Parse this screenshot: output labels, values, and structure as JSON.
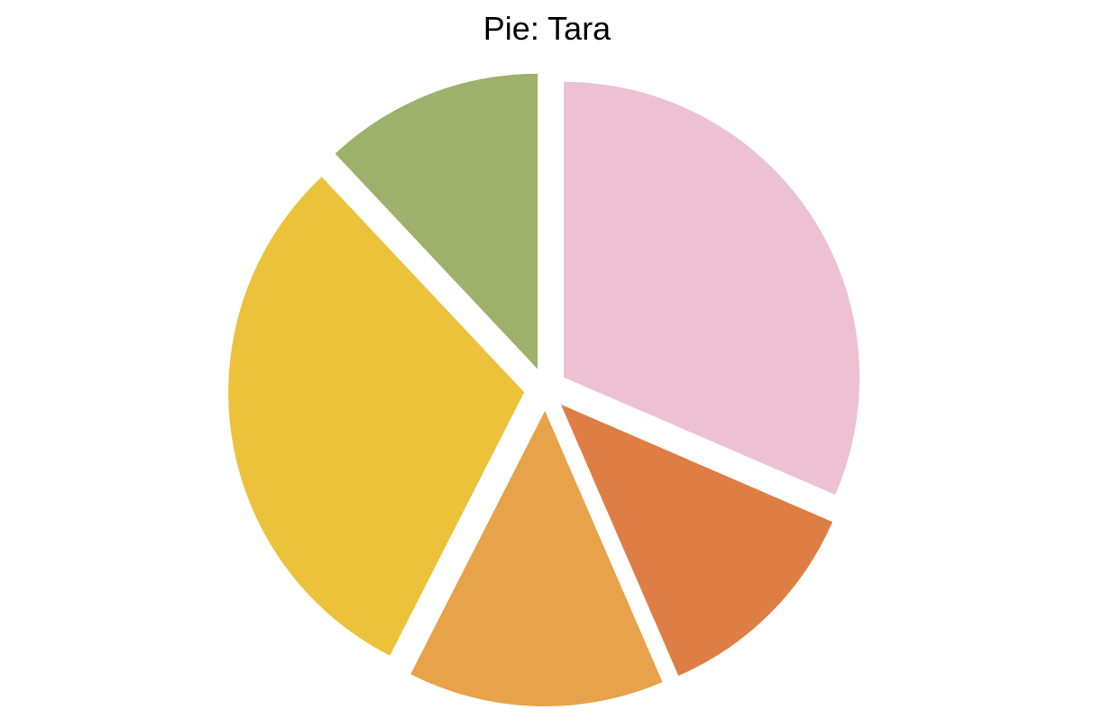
{
  "chart_data": {
    "type": "pie",
    "title": "Pie: Tara",
    "exploded": true,
    "start_angle_deg": 90,
    "direction": "clockwise",
    "slices": [
      {
        "value": 31.5,
        "color": "#EDC1D1"
      },
      {
        "value": 12.0,
        "color": "#DE7E45"
      },
      {
        "value": 14.0,
        "color": "#E8A24A"
      },
      {
        "value": 30.5,
        "color": "#ECC23A"
      },
      {
        "value": 12.0,
        "color": "#9DB16B"
      }
    ],
    "legend": "none",
    "grid": false
  }
}
